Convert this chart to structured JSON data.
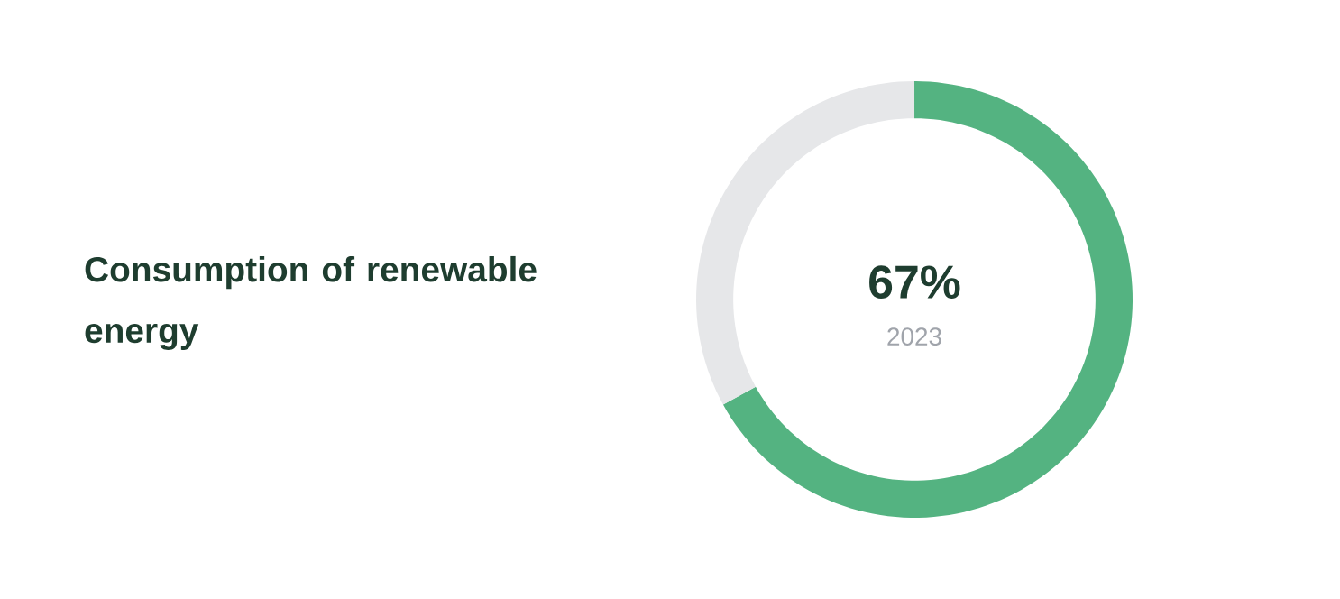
{
  "chart_data": {
    "type": "donut",
    "title": "Consumption of renewable energy",
    "subtitle": "2023",
    "categories": [
      null,
      null
    ],
    "values": [
      67,
      33
    ],
    "colors": [
      "#54b381",
      "#e6e7e9"
    ],
    "value_labels": [
      "67%",
      null
    ]
  }
}
